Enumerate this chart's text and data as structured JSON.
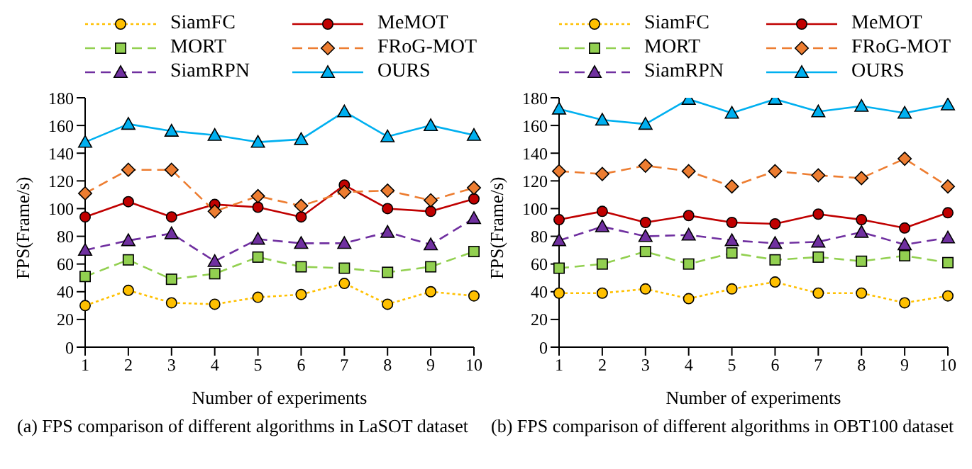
{
  "chart_data": [
    {
      "type": "line",
      "title": "(a) FPS comparison of different algorithms in LaSOT dataset",
      "xlabel": "Number of experiments",
      "ylabel": "FPS(Frame/s)",
      "categories": [
        "1",
        "2",
        "3",
        "4",
        "5",
        "6",
        "7",
        "8",
        "9",
        "10"
      ],
      "ylim": [
        0,
        180
      ],
      "yticks": [
        0,
        20,
        40,
        60,
        80,
        100,
        120,
        140,
        160,
        180
      ],
      "grid": false,
      "legend": "top",
      "series": [
        {
          "name": "SiamFC",
          "color": "#ffc000",
          "marker": "circle",
          "line_style": "dotted",
          "values": [
            30,
            41,
            32,
            31,
            36,
            38,
            46,
            31,
            40,
            37
          ]
        },
        {
          "name": "MeMOT",
          "color": "#c00000",
          "marker": "circle",
          "line_style": "solid",
          "values": [
            94,
            105,
            94,
            103,
            101,
            94,
            117,
            100,
            98,
            107
          ]
        },
        {
          "name": "MORT",
          "color": "#92d050",
          "marker": "square",
          "line_style": "dashed",
          "values": [
            51,
            63,
            49,
            53,
            65,
            58,
            57,
            54,
            58,
            69
          ]
        },
        {
          "name": "FRoG-MOT",
          "color": "#ed7d31",
          "marker": "diamond",
          "line_style": "dashed",
          "values": [
            111,
            128,
            128,
            98,
            109,
            102,
            112,
            113,
            106,
            115
          ]
        },
        {
          "name": "SiamRPN",
          "color": "#7030a0",
          "marker": "triangle",
          "line_style": "dashed",
          "values": [
            70,
            77,
            82,
            62,
            78,
            75,
            75,
            83,
            74,
            93
          ]
        },
        {
          "name": "OURS",
          "color": "#00b0f0",
          "marker": "triangle",
          "line_style": "solid",
          "values": [
            148,
            161,
            156,
            153,
            148,
            150,
            170,
            152,
            160,
            153
          ]
        }
      ]
    },
    {
      "type": "line",
      "title": "(b) FPS comparison of different algorithms in OBT100 dataset",
      "xlabel": "Number of experiments",
      "ylabel": "FPS(Frame/s)",
      "categories": [
        "1",
        "2",
        "3",
        "4",
        "5",
        "6",
        "7",
        "8",
        "9",
        "10"
      ],
      "ylim": [
        0,
        180
      ],
      "yticks": [
        0,
        20,
        40,
        60,
        80,
        100,
        120,
        140,
        160,
        180
      ],
      "grid": false,
      "legend": "top",
      "series": [
        {
          "name": "SiamFC",
          "color": "#ffc000",
          "marker": "circle",
          "line_style": "dotted",
          "values": [
            39,
            39,
            42,
            35,
            42,
            47,
            39,
            39,
            32,
            37
          ]
        },
        {
          "name": "MeMOT",
          "color": "#c00000",
          "marker": "circle",
          "line_style": "solid",
          "values": [
            92,
            98,
            90,
            95,
            90,
            89,
            96,
            92,
            86,
            97
          ]
        },
        {
          "name": "MORT",
          "color": "#92d050",
          "marker": "square",
          "line_style": "dashed",
          "values": [
            57,
            60,
            69,
            60,
            68,
            63,
            65,
            62,
            66,
            61
          ]
        },
        {
          "name": "FRoG-MOT",
          "color": "#ed7d31",
          "marker": "diamond",
          "line_style": "dashed",
          "values": [
            127,
            125,
            131,
            127,
            116,
            127,
            124,
            122,
            136,
            116
          ]
        },
        {
          "name": "SiamRPN",
          "color": "#7030a0",
          "marker": "triangle",
          "line_style": "dashed",
          "values": [
            77,
            87,
            80,
            81,
            77,
            75,
            76,
            83,
            74,
            79
          ]
        },
        {
          "name": "OURS",
          "color": "#00b0f0",
          "marker": "triangle",
          "line_style": "solid",
          "values": [
            172,
            164,
            161,
            179,
            169,
            179,
            170,
            174,
            169,
            175
          ]
        }
      ]
    }
  ]
}
